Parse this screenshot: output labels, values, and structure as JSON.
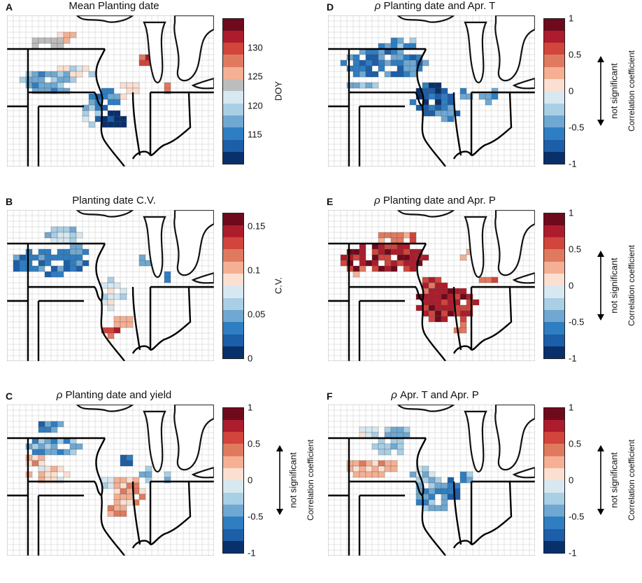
{
  "figure": {
    "palette": [
      "#08306b",
      "#1d5ea8",
      "#2f7ec2",
      "#6fa8d2",
      "#a9cfe5",
      "#d7e8f1",
      "#fbe0d2",
      "#f5b094",
      "#e07a5f",
      "#d1453c",
      "#ad1c2c",
      "#6e0a1c"
    ],
    "grey": "#bdbdbd"
  },
  "panels": [
    {
      "letter": "A",
      "title": "Mean Planting date",
      "title_rho": "",
      "colorbar": {
        "label": "DOY",
        "ticks": [
          "130",
          "125",
          "120",
          "115"
        ],
        "tick_values": [
          130,
          125,
          120,
          115
        ],
        "range": [
          110,
          135
        ],
        "include_grey": true
      },
      "not_significant": "",
      "field": "A"
    },
    {
      "letter": "B",
      "title": "Planting date C.V.",
      "title_rho": "",
      "colorbar": {
        "label": "C.V.",
        "ticks": [
          "0.15",
          "0.1",
          "0.05",
          "0"
        ],
        "tick_values": [
          0.15,
          0.1,
          0.05,
          0
        ],
        "range": [
          0,
          0.165
        ],
        "include_grey": false
      },
      "not_significant": "",
      "field": "B"
    },
    {
      "letter": "C",
      "title": "Planting date and yield",
      "title_rho": "ρ",
      "colorbar": {
        "label": "Correlation coefficient",
        "ticks": [
          "1",
          "0.5",
          "0",
          "-0.5",
          "-1"
        ],
        "tick_values": [
          1,
          0.5,
          0,
          -0.5,
          -1
        ],
        "range": [
          -1,
          1
        ],
        "include_grey": false
      },
      "not_significant": "not significant",
      "field": "C"
    },
    {
      "letter": "D",
      "title": "Planting date and Apr. T",
      "title_rho": "ρ",
      "colorbar": {
        "label": "Correlation coefficient",
        "ticks": [
          "1",
          "0.5",
          "0",
          "-0.5",
          "-1"
        ],
        "tick_values": [
          1,
          0.5,
          0,
          -0.5,
          -1
        ],
        "range": [
          -1,
          1
        ],
        "include_grey": false
      },
      "not_significant": "not significant",
      "field": "D"
    },
    {
      "letter": "E",
      "title": "Planting date and Apr. P",
      "title_rho": "ρ",
      "colorbar": {
        "label": "Correlation coefficient",
        "ticks": [
          "1",
          "0.5",
          "0",
          "-0.5",
          "-1"
        ],
        "tick_values": [
          1,
          0.5,
          0,
          -0.5,
          -1
        ],
        "range": [
          -1,
          1
        ],
        "include_grey": false
      },
      "not_significant": "not significant",
      "field": "E"
    },
    {
      "letter": "F",
      "title": "Apr. T and Apr. P",
      "title_rho": "ρ",
      "colorbar": {
        "label": "Correlation coefficient",
        "ticks": [
          "1",
          "0.5",
          "0",
          "-0.5",
          "-1"
        ],
        "tick_values": [
          1,
          0.5,
          0,
          -0.5,
          -1
        ],
        "range": [
          -1,
          1
        ],
        "include_grey": false
      },
      "not_significant": "not significant",
      "field": "F"
    }
  ]
}
